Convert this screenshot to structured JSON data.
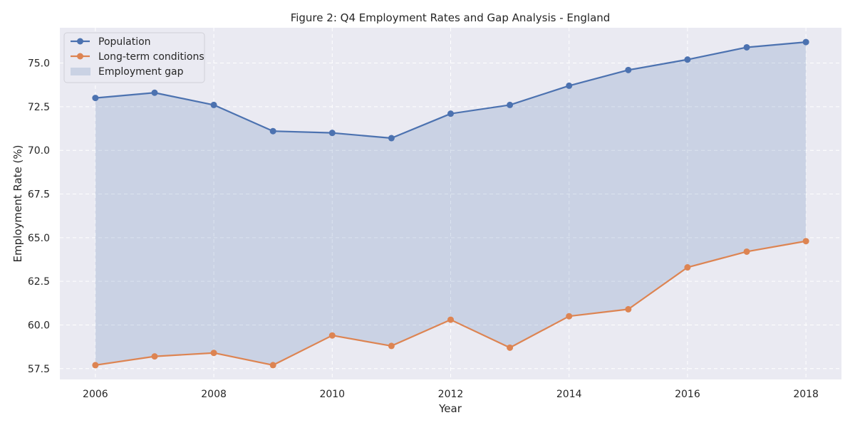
{
  "chart_data": {
    "type": "line",
    "title": "Figure 2: Q4 Employment Rates and Gap Analysis - England",
    "xlabel": "Year",
    "ylabel": "Employment Rate (%)",
    "x": [
      2006,
      2007,
      2008,
      2009,
      2010,
      2011,
      2012,
      2013,
      2014,
      2015,
      2016,
      2017,
      2018
    ],
    "series": [
      {
        "name": "Population",
        "color": "#4c72b0",
        "values": [
          73.0,
          73.3,
          72.6,
          71.1,
          71.0,
          70.7,
          72.1,
          72.6,
          73.7,
          74.6,
          75.2,
          75.9,
          76.2
        ]
      },
      {
        "name": "Long-term conditions",
        "color": "#dd8452",
        "values": [
          57.7,
          58.2,
          58.4,
          57.7,
          59.4,
          58.8,
          60.3,
          58.7,
          60.5,
          60.9,
          63.3,
          64.2,
          64.8
        ]
      }
    ],
    "fill_between": {
      "name": "Employment gap",
      "color": "#4c72b0",
      "opacity": 0.2,
      "between": [
        "Population",
        "Long-term conditions"
      ]
    },
    "xticks": [
      2006,
      2008,
      2010,
      2012,
      2014,
      2016,
      2018
    ],
    "xtick_labels": [
      "2006",
      "2008",
      "2010",
      "2012",
      "2014",
      "2016",
      "2018"
    ],
    "yticks": [
      57.5,
      60.0,
      62.5,
      65.0,
      67.5,
      70.0,
      72.5,
      75.0
    ],
    "ytick_labels": [
      "57.5",
      "60.0",
      "62.5",
      "65.0",
      "67.5",
      "70.0",
      "72.5",
      "75.0"
    ],
    "xlim": [
      2005.4,
      2018.6
    ],
    "ylim": [
      56.88,
      77.02
    ],
    "grid": true,
    "grid_style": "dashed",
    "legend_position": "top-left",
    "background": "#eaeaf2"
  }
}
